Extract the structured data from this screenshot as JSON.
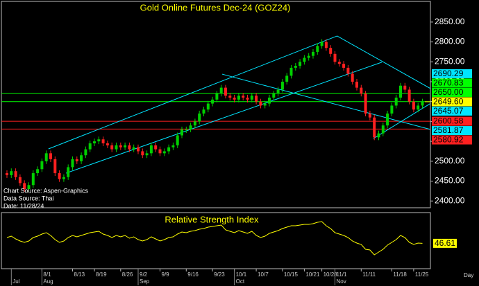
{
  "chart_data": {
    "type": "candlestick",
    "title": "Gold Online Futures Dec-24 (GOZ24)",
    "notes": [
      "Chart Source: Aspen-Graphics",
      "Data Source: Thai",
      "Date: 11/28/24"
    ],
    "x_axis_label": "Day",
    "categories": [
      null,
      null,
      null,
      null,
      null,
      null,
      null,
      null,
      "8/1",
      null,
      null,
      null,
      null,
      null,
      null,
      "8/13",
      null,
      null,
      null,
      null,
      "8/19",
      null,
      null,
      null,
      null,
      null,
      "8/26",
      null,
      null,
      null,
      "9/2",
      null,
      null,
      null,
      null,
      "9/9",
      null,
      null,
      null,
      null,
      null,
      "9/16",
      null,
      null,
      null,
      null,
      null,
      "9/23",
      null,
      null,
      null,
      null,
      "10/1",
      null,
      null,
      null,
      null,
      "10/7",
      null,
      null,
      null,
      null,
      null,
      "10/15",
      null,
      null,
      null,
      null,
      "10/21",
      null,
      null,
      null,
      "10/28",
      null,
      null,
      "11/1",
      null,
      null,
      null,
      null,
      null,
      "11/11",
      null,
      null,
      null,
      null,
      null,
      null,
      "11/18",
      null,
      null,
      null,
      null,
      "11/25",
      null,
      null
    ],
    "months": [
      null,
      "Jul",
      null,
      null,
      null,
      null,
      null,
      null,
      "Aug",
      null,
      null,
      null,
      null,
      null,
      null,
      null,
      null,
      null,
      null,
      null,
      null,
      null,
      null,
      null,
      null,
      null,
      null,
      null,
      null,
      null,
      "Sep",
      null,
      null,
      null,
      null,
      null,
      null,
      null,
      null,
      null,
      null,
      null,
      null,
      null,
      null,
      null,
      null,
      null,
      null,
      null,
      null,
      null,
      "Oct",
      null,
      null,
      null,
      null,
      null,
      null,
      null,
      null,
      null,
      null,
      null,
      null,
      null,
      null,
      null,
      null,
      null,
      null,
      null,
      null,
      null,
      null,
      "Nov",
      null,
      null,
      null,
      null,
      null,
      null,
      null,
      null,
      null,
      null,
      null,
      null,
      null,
      null,
      null,
      null,
      null,
      null,
      null,
      null
    ],
    "ohlc": [
      [
        2470,
        2477,
        2458,
        2465
      ],
      [
        2465,
        2482,
        2458,
        2475
      ],
      [
        2475,
        2482,
        2453,
        2460
      ],
      [
        2460,
        2467,
        2438,
        2445
      ],
      [
        2445,
        2452,
        2423,
        2430
      ],
      [
        2430,
        2447,
        2423,
        2440
      ],
      [
        2440,
        2477,
        2433,
        2470
      ],
      [
        2470,
        2487,
        2463,
        2480
      ],
      [
        2480,
        2507,
        2473,
        2500
      ],
      [
        2500,
        2527,
        2493,
        2520
      ],
      [
        2520,
        2527,
        2498,
        2505
      ],
      [
        2505,
        2512,
        2463,
        2470
      ],
      [
        2470,
        2477,
        2448,
        2455
      ],
      [
        2455,
        2467,
        2448,
        2460
      ],
      [
        2460,
        2492,
        2453,
        2485
      ],
      [
        2485,
        2512,
        2478,
        2505
      ],
      [
        2505,
        2512,
        2493,
        2500
      ],
      [
        2500,
        2522,
        2493,
        2515
      ],
      [
        2515,
        2537,
        2508,
        2530
      ],
      [
        2530,
        2552,
        2523,
        2545
      ],
      [
        2545,
        2557,
        2538,
        2550
      ],
      [
        2550,
        2562,
        2543,
        2555
      ],
      [
        2555,
        2562,
        2538,
        2545
      ],
      [
        2545,
        2552,
        2533,
        2540
      ],
      [
        2540,
        2547,
        2523,
        2530
      ],
      [
        2530,
        2547,
        2523,
        2540
      ],
      [
        2540,
        2547,
        2528,
        2535
      ],
      [
        2535,
        2547,
        2528,
        2540
      ],
      [
        2540,
        2547,
        2523,
        2530
      ],
      [
        2530,
        2542,
        2523,
        2535
      ],
      [
        2535,
        2542,
        2518,
        2525
      ],
      [
        2525,
        2532,
        2508,
        2515
      ],
      [
        2515,
        2527,
        2508,
        2520
      ],
      [
        2520,
        2547,
        2513,
        2540
      ],
      [
        2540,
        2547,
        2523,
        2530
      ],
      [
        2530,
        2537,
        2513,
        2520
      ],
      [
        2520,
        2532,
        2513,
        2525
      ],
      [
        2525,
        2542,
        2518,
        2535
      ],
      [
        2535,
        2547,
        2528,
        2540
      ],
      [
        2540,
        2572,
        2533,
        2565
      ],
      [
        2565,
        2587,
        2558,
        2580
      ],
      [
        2578,
        2587,
        2571,
        2580
      ],
      [
        2580,
        2597,
        2573,
        2590
      ],
      [
        2590,
        2607,
        2583,
        2600
      ],
      [
        2600,
        2627,
        2593,
        2620
      ],
      [
        2620,
        2637,
        2613,
        2630
      ],
      [
        2630,
        2652,
        2623,
        2645
      ],
      [
        2645,
        2662,
        2638,
        2655
      ],
      [
        2655,
        2677,
        2648,
        2670
      ],
      [
        2670,
        2692,
        2663,
        2685
      ],
      [
        2685,
        2692,
        2658,
        2665
      ],
      [
        2665,
        2672,
        2653,
        2660
      ],
      [
        2660,
        2667,
        2648,
        2655
      ],
      [
        2655,
        2672,
        2648,
        2665
      ],
      [
        2665,
        2672,
        2653,
        2660
      ],
      [
        2660,
        2667,
        2648,
        2655
      ],
      [
        2655,
        2672,
        2648,
        2665
      ],
      [
        2665,
        2672,
        2643,
        2650
      ],
      [
        2650,
        2657,
        2633,
        2640
      ],
      [
        2640,
        2652,
        2633,
        2645
      ],
      [
        2645,
        2667,
        2638,
        2660
      ],
      [
        2660,
        2677,
        2653,
        2670
      ],
      [
        2670,
        2687,
        2663,
        2680
      ],
      [
        2680,
        2707,
        2673,
        2700
      ],
      [
        2700,
        2722,
        2693,
        2715
      ],
      [
        2715,
        2742,
        2708,
        2735
      ],
      [
        2735,
        2747,
        2728,
        2740
      ],
      [
        2740,
        2757,
        2733,
        2750
      ],
      [
        2750,
        2767,
        2743,
        2760
      ],
      [
        2760,
        2772,
        2753,
        2765
      ],
      [
        2765,
        2782,
        2758,
        2775
      ],
      [
        2775,
        2797,
        2768,
        2790
      ],
      [
        2790,
        2807,
        2783,
        2800
      ],
      [
        2800,
        2807,
        2778,
        2785
      ],
      [
        2785,
        2792,
        2763,
        2770
      ],
      [
        2770,
        2777,
        2743,
        2750
      ],
      [
        2750,
        2757,
        2738,
        2745
      ],
      [
        2745,
        2752,
        2728,
        2735
      ],
      [
        2735,
        2742,
        2713,
        2720
      ],
      [
        2720,
        2727,
        2693,
        2700
      ],
      [
        2700,
        2707,
        2678,
        2685
      ],
      [
        2685,
        2692,
        2663,
        2670
      ],
      [
        2670,
        2677,
        2613,
        2620
      ],
      [
        2620,
        2627,
        2603,
        2610
      ],
      [
        2610,
        2617,
        2553,
        2560
      ],
      [
        2560,
        2577,
        2553,
        2570
      ],
      [
        2570,
        2597,
        2563,
        2590
      ],
      [
        2590,
        2627,
        2583,
        2620
      ],
      [
        2620,
        2647,
        2613,
        2640
      ],
      [
        2640,
        2667,
        2633,
        2660
      ],
      [
        2660,
        2697,
        2653,
        2690
      ],
      [
        2690,
        2697,
        2673,
        2680
      ],
      [
        2680,
        2687,
        2643,
        2650
      ],
      [
        2650,
        2657,
        2623,
        2630
      ],
      [
        2630,
        2647,
        2623,
        2640
      ],
      [
        2640,
        2657,
        2633,
        2649.6
      ]
    ],
    "up_color": "#00d000",
    "down_color": "#ff2020",
    "ylim": [
      2383,
      2902
    ],
    "yticks": [
      {
        "value": 2850,
        "label": "2850.00"
      },
      {
        "value": 2800,
        "label": "2800.00"
      },
      {
        "value": 2750,
        "label": "2750.00"
      },
      {
        "value": 2700,
        "label": "2700.00"
      },
      {
        "value": 2650,
        "label": "2650.00"
      },
      {
        "value": 2600,
        "label": "2600.00"
      },
      {
        "value": 2550,
        "label": "2550.00"
      },
      {
        "value": 2500,
        "label": "2500.00"
      },
      {
        "value": 2450,
        "label": "2450.00"
      },
      {
        "value": 2400,
        "label": "2400.00"
      }
    ],
    "trendline_color": "#00e5ff",
    "trendlines": [
      [
        [
          9.5,
          2531
        ],
        [
          75.5,
          2815
        ]
      ],
      [
        [
          13.5,
          2470
        ],
        [
          85.7,
          2749
        ]
      ],
      [
        [
          75.5,
          2815
        ],
        [
          96.8,
          2683
        ]
      ],
      [
        [
          49.2,
          2719
        ],
        [
          96.8,
          2580
        ]
      ],
      [
        [
          83.8,
          2557
        ],
        [
          96.8,
          2645.07
        ]
      ]
    ],
    "levels": [
      {
        "value": 2690.29,
        "label": "2690.29",
        "color": "#00e5ff",
        "line": false
      },
      {
        "value": 2670.83,
        "label": "2670.83",
        "color": "#00ff00",
        "line": true
      },
      {
        "value": 2650,
        "label": "2650.00",
        "color": "#00ff00",
        "line": true
      },
      {
        "value": 2645.07,
        "label": "2645.07",
        "color": "#00e5ff",
        "line": false
      },
      {
        "value": 2600.58,
        "label": "2600.58",
        "color": "#ff2020",
        "line": true
      },
      {
        "value": 2581.87,
        "label": "2581.87",
        "color": "#00e5ff",
        "line": false
      },
      {
        "value": 2580.92,
        "label": "2580.92",
        "color": "#ff2020",
        "line": true
      }
    ],
    "last_price": {
      "value": 2649.6,
      "label": "2649.60",
      "color": "#ffff00"
    },
    "rsi": {
      "title": "Relative Strength Index",
      "color": "#ffff00",
      "ylim": [
        10,
        90
      ],
      "values": [
        55,
        57,
        53,
        50,
        48,
        50,
        55,
        57,
        60,
        62,
        58,
        52,
        48,
        50,
        55,
        58,
        56,
        58,
        60,
        62,
        63,
        64,
        60,
        58,
        55,
        58,
        56,
        58,
        54,
        56,
        52,
        50,
        52,
        56,
        53,
        50,
        52,
        55,
        56,
        60,
        63,
        62,
        64,
        65,
        67,
        68,
        70,
        71,
        72,
        73,
        66,
        64,
        62,
        65,
        63,
        61,
        64,
        58,
        55,
        57,
        61,
        63,
        65,
        68,
        70,
        72,
        72,
        73,
        74,
        74,
        75,
        77,
        78,
        72,
        68,
        62,
        60,
        58,
        55,
        50,
        47,
        45,
        38,
        37,
        30,
        34,
        38,
        44,
        48,
        52,
        58,
        55,
        48,
        45,
        47,
        46.61
      ],
      "last_label": "46.61"
    }
  }
}
